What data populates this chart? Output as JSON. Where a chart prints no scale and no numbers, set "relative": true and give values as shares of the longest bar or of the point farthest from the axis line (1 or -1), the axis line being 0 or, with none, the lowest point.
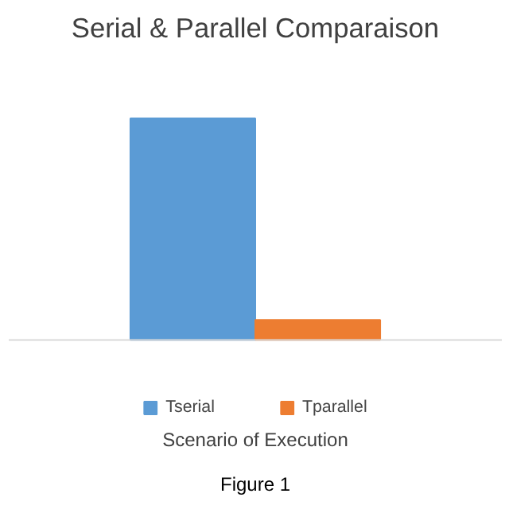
{
  "chart_data": {
    "type": "bar",
    "title": "Serial & Parallel Comparaison",
    "xlabel": "Scenario of Execution",
    "categories": [
      null
    ],
    "relative": true,
    "series": [
      {
        "name": "Tserial",
        "color": "#5b9bd5",
        "values": [
          1
        ]
      },
      {
        "name": "Tparallel",
        "color": "#ed7d31",
        "values": [
          0.09
        ]
      }
    ],
    "legend": "bottom",
    "annotations": [
      "Figure 1"
    ]
  }
}
